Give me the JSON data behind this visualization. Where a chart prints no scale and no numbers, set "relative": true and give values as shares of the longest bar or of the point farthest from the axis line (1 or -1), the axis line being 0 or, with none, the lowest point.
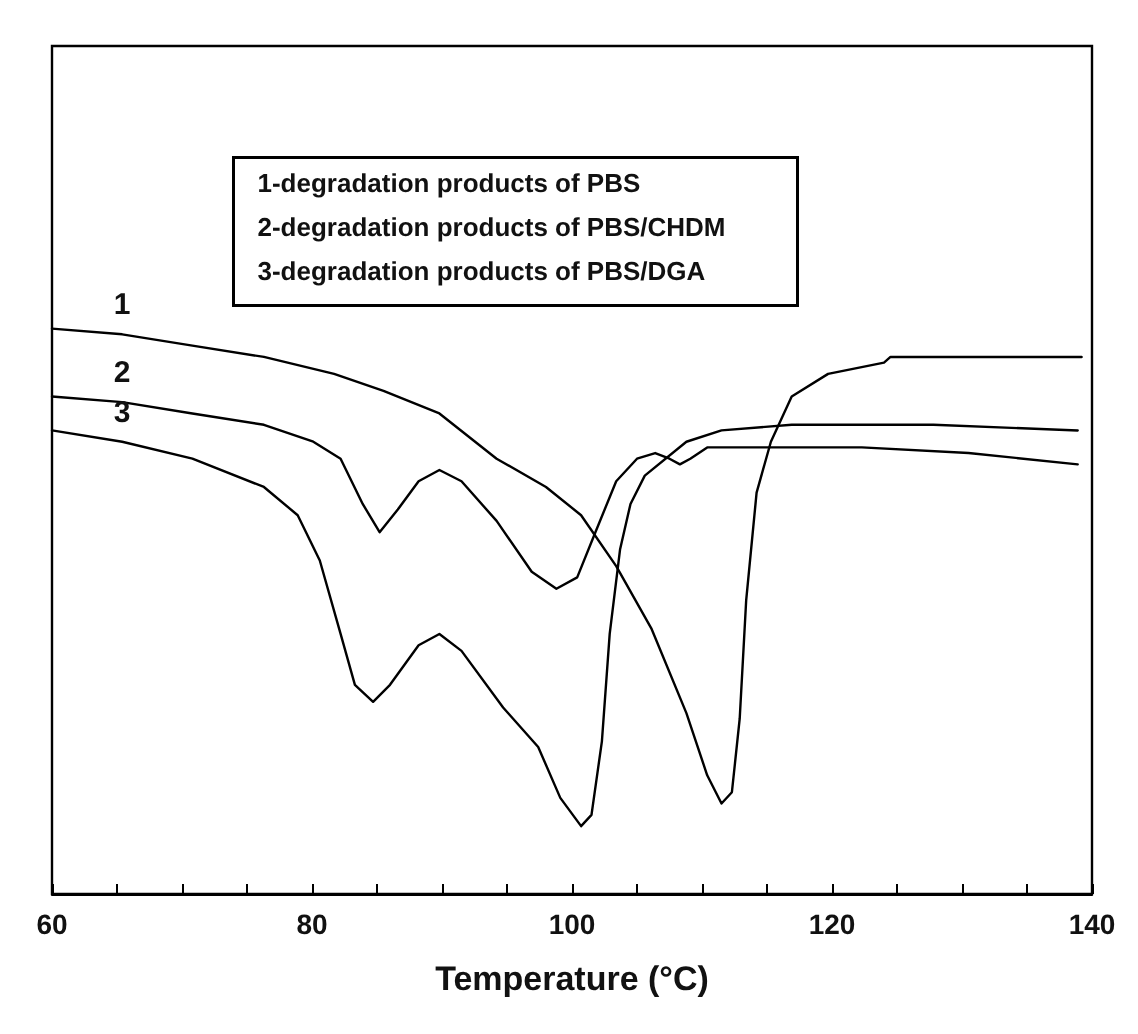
{
  "chart_data": {
    "type": "line",
    "relative": true,
    "xlabel": "Temperature (°C)",
    "xlim": [
      60,
      140
    ],
    "xticks": [
      60,
      {
        "value": 65,
        "label": null
      },
      {
        "value": 70,
        "label": null
      },
      {
        "value": 75,
        "label": null
      },
      80,
      {
        "value": 85,
        "label": null
      },
      {
        "value": 90,
        "label": null
      },
      {
        "value": 95,
        "label": null
      },
      100,
      {
        "value": 105,
        "label": null
      },
      {
        "value": 110,
        "label": null
      },
      {
        "value": 115,
        "label": null
      },
      120,
      {
        "value": 125,
        "label": null
      },
      {
        "value": 130,
        "label": null
      },
      {
        "value": 135,
        "label": null
      },
      140
    ],
    "tick_labels": "x",
    "grid": false,
    "legend": false,
    "marker": "none",
    "line_style": "solid",
    "annotations": [
      "1-degradation products of PBS",
      "2-degradation products of PBS/CHDM",
      "3-degradation products of PBS/DGA"
    ],
    "series": [
      {
        "name": "1",
        "color": "#000000",
        "x": [
          60,
          65.4,
          70.8,
          76.3,
          81.7,
          85.5,
          89.8,
          94.2,
          98.0,
          100.7,
          103.4,
          106.1,
          108.8,
          110.4,
          111.5,
          112.3,
          112.9,
          113.4,
          114.2,
          115.3,
          116.9,
          119.7,
          124.0,
          124.5,
          127.8,
          133.2,
          139.2
        ],
        "values": [
          1.0,
          0.99,
          0.97,
          0.95,
          0.92,
          0.89,
          0.85,
          0.77,
          0.72,
          0.67,
          0.58,
          0.47,
          0.32,
          0.21,
          0.16,
          0.18,
          0.31,
          0.52,
          0.71,
          0.8,
          0.88,
          0.92,
          0.94,
          0.95,
          0.95,
          0.95,
          0.95
        ]
      },
      {
        "name": "2",
        "color": "#000000",
        "x": [
          60,
          65.4,
          70.8,
          76.3,
          80.1,
          82.2,
          83.9,
          85.2,
          86.6,
          88.2,
          89.8,
          91.5,
          94.2,
          96.9,
          98.8,
          100.4,
          101.8,
          103.4,
          105.0,
          106.4,
          107.5,
          108.3,
          109.1,
          110.4,
          114.2,
          122.3,
          130.5,
          138.9
        ],
        "values": [
          0.88,
          0.87,
          0.85,
          0.83,
          0.8,
          0.77,
          0.69,
          0.64,
          0.68,
          0.73,
          0.75,
          0.73,
          0.66,
          0.57,
          0.54,
          0.56,
          0.64,
          0.73,
          0.77,
          0.78,
          0.77,
          0.76,
          0.77,
          0.79,
          0.79,
          0.79,
          0.78,
          0.76
        ]
      },
      {
        "name": "3",
        "color": "#000000",
        "x": [
          60,
          65.4,
          70.8,
          76.3,
          78.9,
          80.6,
          82.2,
          83.3,
          84.7,
          86.0,
          88.2,
          89.8,
          91.5,
          94.7,
          97.4,
          99.1,
          100.7,
          101.5,
          102.3,
          102.9,
          103.7,
          104.5,
          105.6,
          108.8,
          111.5,
          116.9,
          127.8,
          138.9
        ],
        "values": [
          0.82,
          0.8,
          0.77,
          0.72,
          0.67,
          0.59,
          0.46,
          0.37,
          0.34,
          0.37,
          0.44,
          0.46,
          0.43,
          0.33,
          0.26,
          0.17,
          0.12,
          0.14,
          0.27,
          0.46,
          0.61,
          0.69,
          0.74,
          0.8,
          0.82,
          0.83,
          0.83,
          0.82
        ]
      }
    ]
  }
}
